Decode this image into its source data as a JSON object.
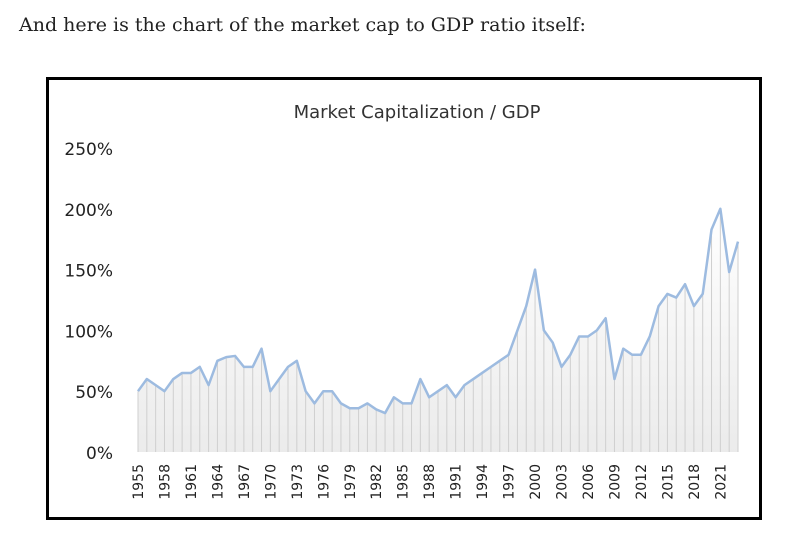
{
  "intro_text": "And here is the chart of the market cap to GDP ratio itself:",
  "chart_data": {
    "type": "line",
    "title": "Market Capitalization / GDP",
    "xlabel": "",
    "ylabel": "",
    "ylim": [
      0,
      250
    ],
    "yticks": [
      "0%",
      "50%",
      "100%",
      "150%",
      "200%",
      "250%"
    ],
    "xtick_labels": [
      "1955",
      "1958",
      "1961",
      "1964",
      "1967",
      "1970",
      "1973",
      "1976",
      "1979",
      "1982",
      "1985",
      "1988",
      "1991",
      "1994",
      "1997",
      "2000",
      "2003",
      "2006",
      "2009",
      "2012",
      "2015",
      "2018",
      "2021"
    ],
    "x": [
      1955,
      1956,
      1957,
      1958,
      1959,
      1960,
      1961,
      1962,
      1963,
      1964,
      1965,
      1966,
      1967,
      1968,
      1969,
      1970,
      1971,
      1972,
      1973,
      1974,
      1975,
      1976,
      1977,
      1978,
      1979,
      1980,
      1981,
      1982,
      1983,
      1984,
      1985,
      1986,
      1987,
      1988,
      1989,
      1990,
      1991,
      1992,
      1993,
      1994,
      1995,
      1996,
      1997,
      1998,
      1999,
      2000,
      2001,
      2002,
      2003,
      2004,
      2005,
      2006,
      2007,
      2008,
      2009,
      2010,
      2011,
      2012,
      2013,
      2014,
      2015,
      2016,
      2017,
      2018,
      2019,
      2020,
      2021,
      2022,
      2023
    ],
    "values": [
      50,
      60,
      55,
      50,
      60,
      65,
      65,
      70,
      55,
      75,
      78,
      79,
      70,
      70,
      85,
      50,
      60,
      70,
      75,
      50,
      40,
      50,
      50,
      40,
      36,
      36,
      40,
      35,
      32,
      45,
      40,
      40,
      60,
      45,
      50,
      55,
      45,
      55,
      60,
      65,
      70,
      75,
      80,
      100,
      120,
      150,
      100,
      90,
      70,
      80,
      95,
      95,
      100,
      110,
      60,
      85,
      80,
      80,
      95,
      120,
      130,
      127,
      138,
      120,
      130,
      183,
      200,
      148,
      173
    ],
    "unit": "%",
    "grid": false,
    "drop_lines": true,
    "colors": {
      "line": "#9dbbe0",
      "drop_line": "#cfcfcf",
      "border": "#000000"
    }
  }
}
